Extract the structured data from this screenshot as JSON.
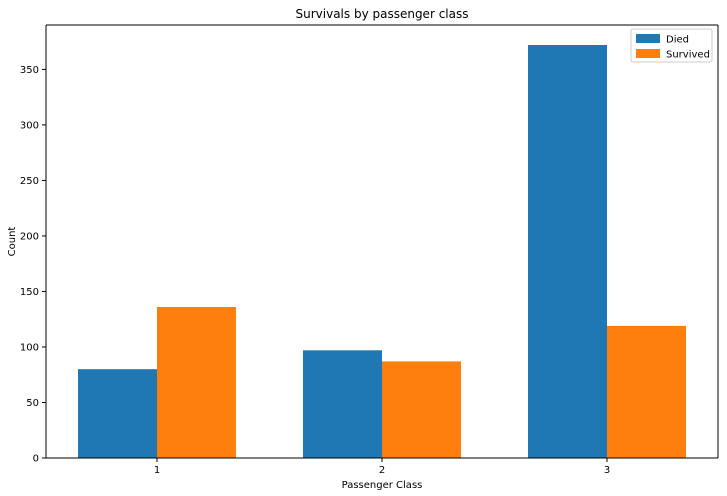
{
  "chart_data": {
    "type": "bar",
    "title": "Survivals by passenger class",
    "xlabel": "Passenger Class",
    "ylabel": "Count",
    "categories": [
      "1",
      "2",
      "3"
    ],
    "series": [
      {
        "name": "Died",
        "values": [
          80,
          97,
          372
        ],
        "color": "#1f77b4"
      },
      {
        "name": "Survived",
        "values": [
          136,
          87,
          119
        ],
        "color": "#ff7f0e"
      }
    ],
    "ylim": [
      0,
      390
    ],
    "yticks": [
      0,
      50,
      100,
      150,
      200,
      250,
      300,
      350
    ],
    "grid": false,
    "legend_position": "top-right"
  }
}
